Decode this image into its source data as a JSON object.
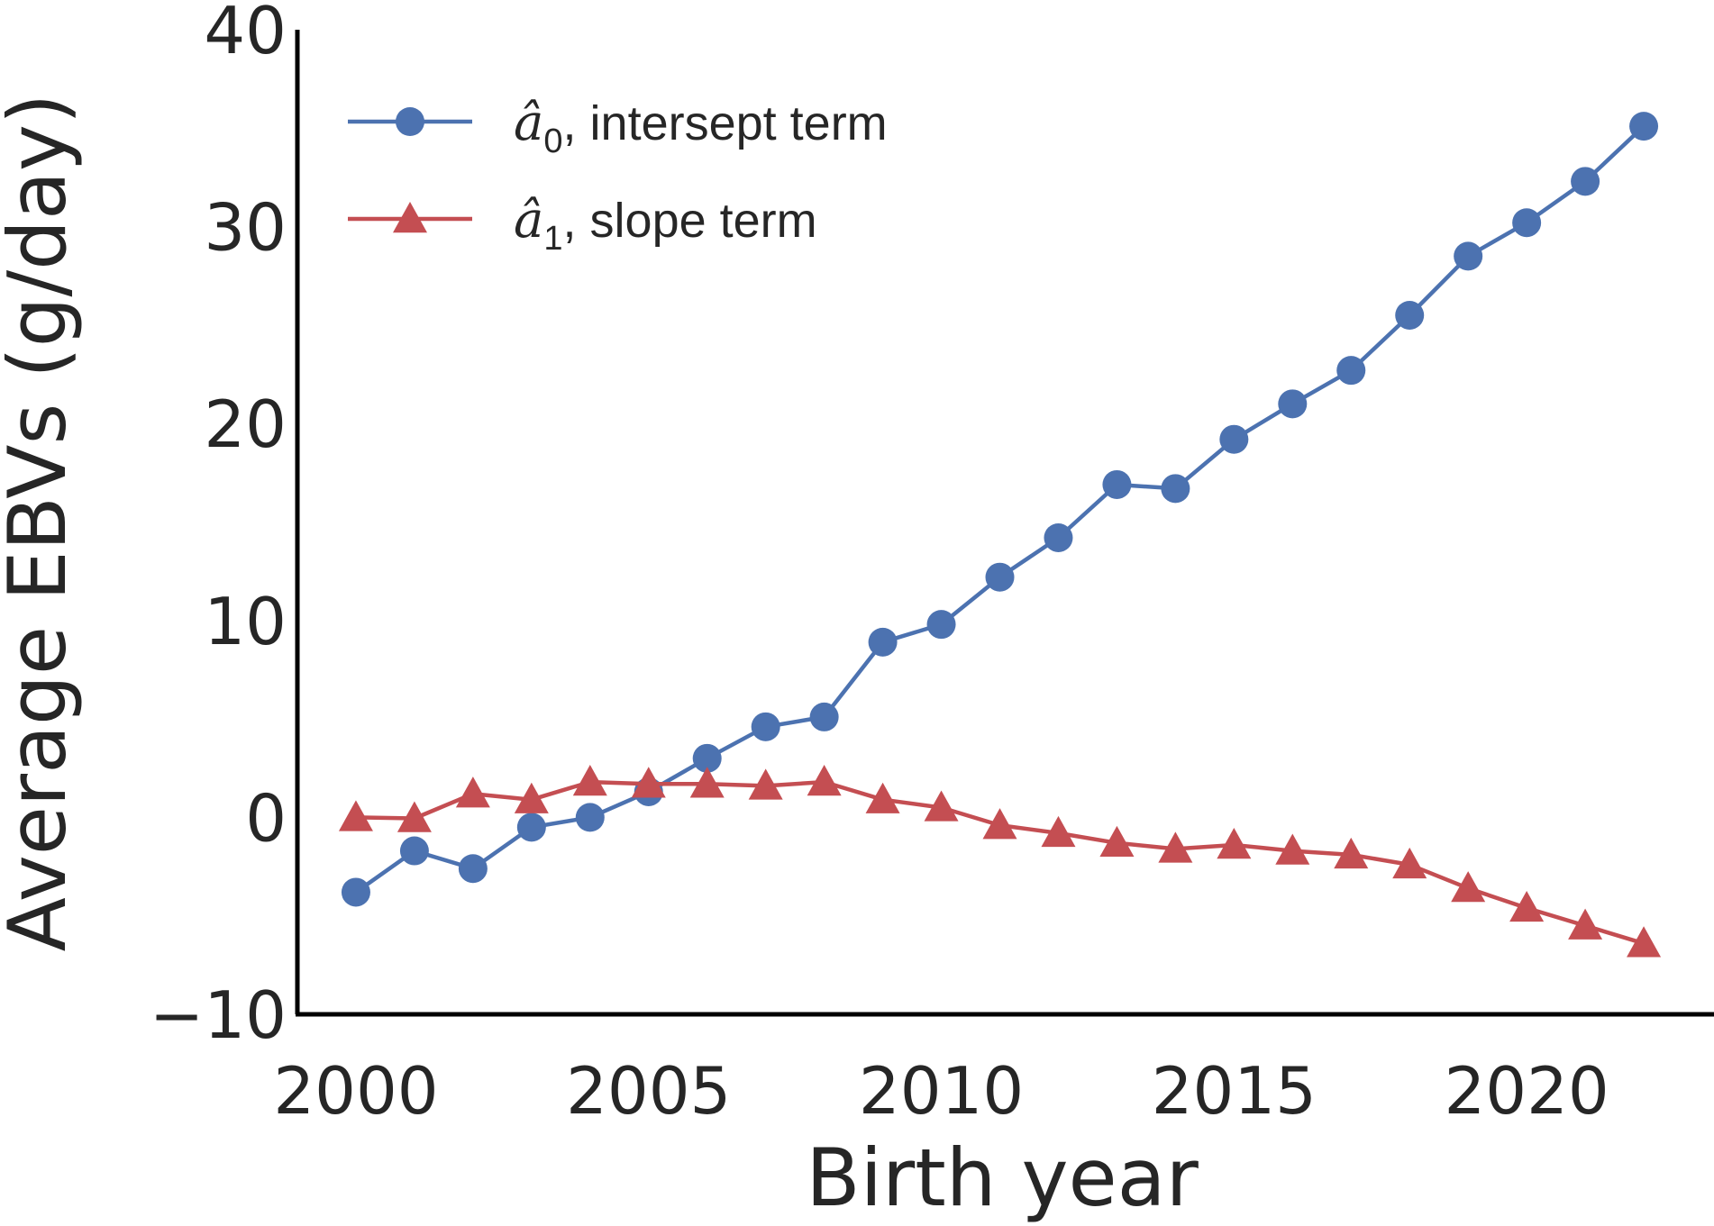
{
  "chart_data": {
    "type": "line",
    "xlabel": "Birth year",
    "ylabel": "Average EBVs (g/day)",
    "xlim": [
      1999,
      2023.2
    ],
    "ylim": [
      -10,
      40
    ],
    "xticks": [
      2000,
      2005,
      2010,
      2015,
      2020
    ],
    "yticks": [
      -10,
      0,
      10,
      20,
      30,
      40
    ],
    "ytick_labels": [
      "−10",
      "0",
      "10",
      "20",
      "30",
      "40"
    ],
    "grid": false,
    "legend_position": "top-left",
    "x": [
      2000,
      2001,
      2002,
      2003,
      2004,
      2005,
      2006,
      2007,
      2008,
      2009,
      2010,
      2011,
      2012,
      2013,
      2014,
      2015,
      2016,
      2017,
      2018,
      2019,
      2020,
      2021,
      2022
    ],
    "series": [
      {
        "name": "â₀, intersept term",
        "legend_symbol": "â",
        "legend_subscript": "0",
        "legend_text": ", intersept term",
        "color": "#4c72b0",
        "marker": "circle",
        "values": [
          -3.8,
          -1.7,
          -2.6,
          -0.5,
          0.0,
          1.3,
          3.0,
          4.6,
          5.1,
          8.9,
          9.8,
          12.2,
          14.2,
          16.9,
          16.7,
          19.2,
          21.0,
          22.7,
          25.5,
          28.5,
          30.2,
          32.3,
          35.1
        ]
      },
      {
        "name": "â₁, slope term",
        "legend_symbol": "â",
        "legend_subscript": "1",
        "legend_text": ", slope term",
        "color": "#c44e52",
        "marker": "triangle",
        "values": [
          0.0,
          -0.05,
          1.2,
          0.9,
          1.8,
          1.7,
          1.7,
          1.6,
          1.8,
          0.9,
          0.5,
          -0.4,
          -0.8,
          -1.3,
          -1.6,
          -1.4,
          -1.7,
          -1.9,
          -2.4,
          -3.6,
          -4.6,
          -5.5,
          -6.4
        ]
      }
    ]
  }
}
